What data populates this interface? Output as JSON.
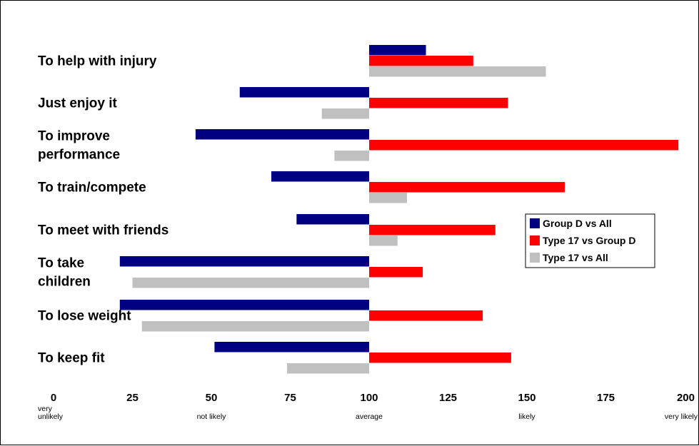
{
  "chart_data": {
    "type": "bar",
    "orientation": "horizontal",
    "baseline": 100,
    "xlim": [
      0,
      200
    ],
    "x_ticks": [
      0,
      25,
      50,
      75,
      100,
      125,
      150,
      175,
      200
    ],
    "x_descriptors": [
      {
        "value": 0,
        "lines": [
          "very",
          "unlikely"
        ]
      },
      {
        "value": 50,
        "lines": [
          "not likely"
        ]
      },
      {
        "value": 100,
        "lines": [
          "average"
        ]
      },
      {
        "value": 150,
        "lines": [
          "likely"
        ]
      },
      {
        "value": 200,
        "lines": [
          "very likely"
        ]
      }
    ],
    "categories": [
      {
        "lines": [
          "To help with injury"
        ]
      },
      {
        "lines": [
          "Just enjoy it"
        ]
      },
      {
        "lines": [
          "To improve",
          "performance"
        ]
      },
      {
        "lines": [
          "To train/compete"
        ]
      },
      {
        "lines": [
          "To meet with friends"
        ]
      },
      {
        "lines": [
          "To take",
          "children"
        ]
      },
      {
        "lines": [
          "To lose weight"
        ]
      },
      {
        "lines": [
          "To keep fit"
        ]
      }
    ],
    "series": [
      {
        "name": "Group D vs All",
        "color": "#000080",
        "values": [
          118,
          59,
          45,
          69,
          77,
          21,
          21,
          51
        ]
      },
      {
        "name": "Type 17 vs Group D",
        "color": "#ff0000",
        "values": [
          133,
          144,
          198,
          162,
          140,
          117,
          136,
          145
        ]
      },
      {
        "name": "Type 17 vs All",
        "color": "#c0c0c0",
        "values": [
          156,
          85,
          89,
          112,
          109,
          25,
          28,
          74
        ]
      }
    ],
    "legend": {
      "position": "right"
    },
    "grid": false
  }
}
